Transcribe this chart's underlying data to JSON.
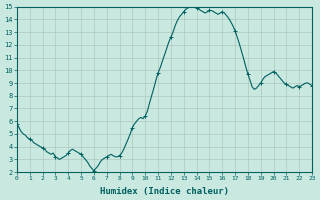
{
  "xlabel": "Humidex (Indice chaleur)",
  "xlim": [
    0,
    23
  ],
  "ylim": [
    2,
    15
  ],
  "yticks": [
    2,
    3,
    4,
    5,
    6,
    7,
    8,
    9,
    10,
    11,
    12,
    13,
    14,
    15
  ],
  "xticks": [
    0,
    1,
    2,
    3,
    4,
    5,
    6,
    7,
    8,
    9,
    10,
    11,
    12,
    13,
    14,
    15,
    16,
    17,
    18,
    19,
    20,
    21,
    22,
    23
  ],
  "bg_color": "#c8e8e0",
  "line_color": "#006060",
  "grid_color": "#b0c8c0",
  "x": [
    0.0,
    0.17,
    0.33,
    0.5,
    0.67,
    0.83,
    1.0,
    1.17,
    1.33,
    1.5,
    1.67,
    1.83,
    2.0,
    2.17,
    2.33,
    2.5,
    2.67,
    2.83,
    3.0,
    3.17,
    3.33,
    3.5,
    3.67,
    3.83,
    4.0,
    4.17,
    4.33,
    4.5,
    4.67,
    4.83,
    5.0,
    5.17,
    5.33,
    5.5,
    5.67,
    5.83,
    6.0,
    6.17,
    6.33,
    6.5,
    6.67,
    6.83,
    7.0,
    7.17,
    7.33,
    7.5,
    7.67,
    7.83,
    8.0,
    8.17,
    8.33,
    8.5,
    8.67,
    8.83,
    9.0,
    9.17,
    9.33,
    9.5,
    9.67,
    9.83,
    10.0,
    10.17,
    10.33,
    10.5,
    10.67,
    10.83,
    11.0,
    11.17,
    11.33,
    11.5,
    11.67,
    11.83,
    12.0,
    12.17,
    12.33,
    12.5,
    12.67,
    12.83,
    13.0,
    13.17,
    13.33,
    13.5,
    13.67,
    13.83,
    14.0,
    14.17,
    14.33,
    14.5,
    14.67,
    14.83,
    15.0,
    15.17,
    15.33,
    15.5,
    15.67,
    15.83,
    16.0,
    16.17,
    16.33,
    16.5,
    16.67,
    16.83,
    17.0,
    17.17,
    17.33,
    17.5,
    17.67,
    17.83,
    18.0,
    18.17,
    18.33,
    18.5,
    18.67,
    18.83,
    19.0,
    19.17,
    19.33,
    19.5,
    19.67,
    19.83,
    20.0,
    20.17,
    20.33,
    20.5,
    20.67,
    20.83,
    21.0,
    21.17,
    21.33,
    21.5,
    21.67,
    21.83,
    22.0,
    22.17,
    22.33,
    22.5,
    22.67,
    22.83,
    23.0
  ],
  "y": [
    5.8,
    5.5,
    5.2,
    5.0,
    4.9,
    4.7,
    4.6,
    4.5,
    4.3,
    4.2,
    4.1,
    4.0,
    3.9,
    3.8,
    3.6,
    3.5,
    3.4,
    3.5,
    3.2,
    3.1,
    3.0,
    3.1,
    3.2,
    3.3,
    3.5,
    3.7,
    3.8,
    3.7,
    3.6,
    3.5,
    3.4,
    3.2,
    3.0,
    2.8,
    2.5,
    2.3,
    2.1,
    2.3,
    2.5,
    2.8,
    3.0,
    3.1,
    3.2,
    3.3,
    3.4,
    3.3,
    3.2,
    3.2,
    3.3,
    3.5,
    3.8,
    4.2,
    4.6,
    5.0,
    5.5,
    5.8,
    6.0,
    6.2,
    6.3,
    6.2,
    6.4,
    6.8,
    7.4,
    8.0,
    8.6,
    9.2,
    9.8,
    10.2,
    10.7,
    11.2,
    11.7,
    12.2,
    12.6,
    13.0,
    13.5,
    13.9,
    14.2,
    14.4,
    14.6,
    14.8,
    14.9,
    15.0,
    15.1,
    15.0,
    14.9,
    14.8,
    14.7,
    14.6,
    14.5,
    14.6,
    14.7,
    14.7,
    14.6,
    14.5,
    14.4,
    14.5,
    14.6,
    14.5,
    14.3,
    14.1,
    13.8,
    13.5,
    13.1,
    12.6,
    12.1,
    11.5,
    10.9,
    10.3,
    9.7,
    9.2,
    8.7,
    8.5,
    8.6,
    8.8,
    9.0,
    9.3,
    9.5,
    9.6,
    9.7,
    9.8,
    9.9,
    9.8,
    9.6,
    9.4,
    9.2,
    9.0,
    8.9,
    8.8,
    8.7,
    8.6,
    8.7,
    8.8,
    8.7,
    8.8,
    8.9,
    9.0,
    9.0,
    8.9,
    8.8
  ]
}
